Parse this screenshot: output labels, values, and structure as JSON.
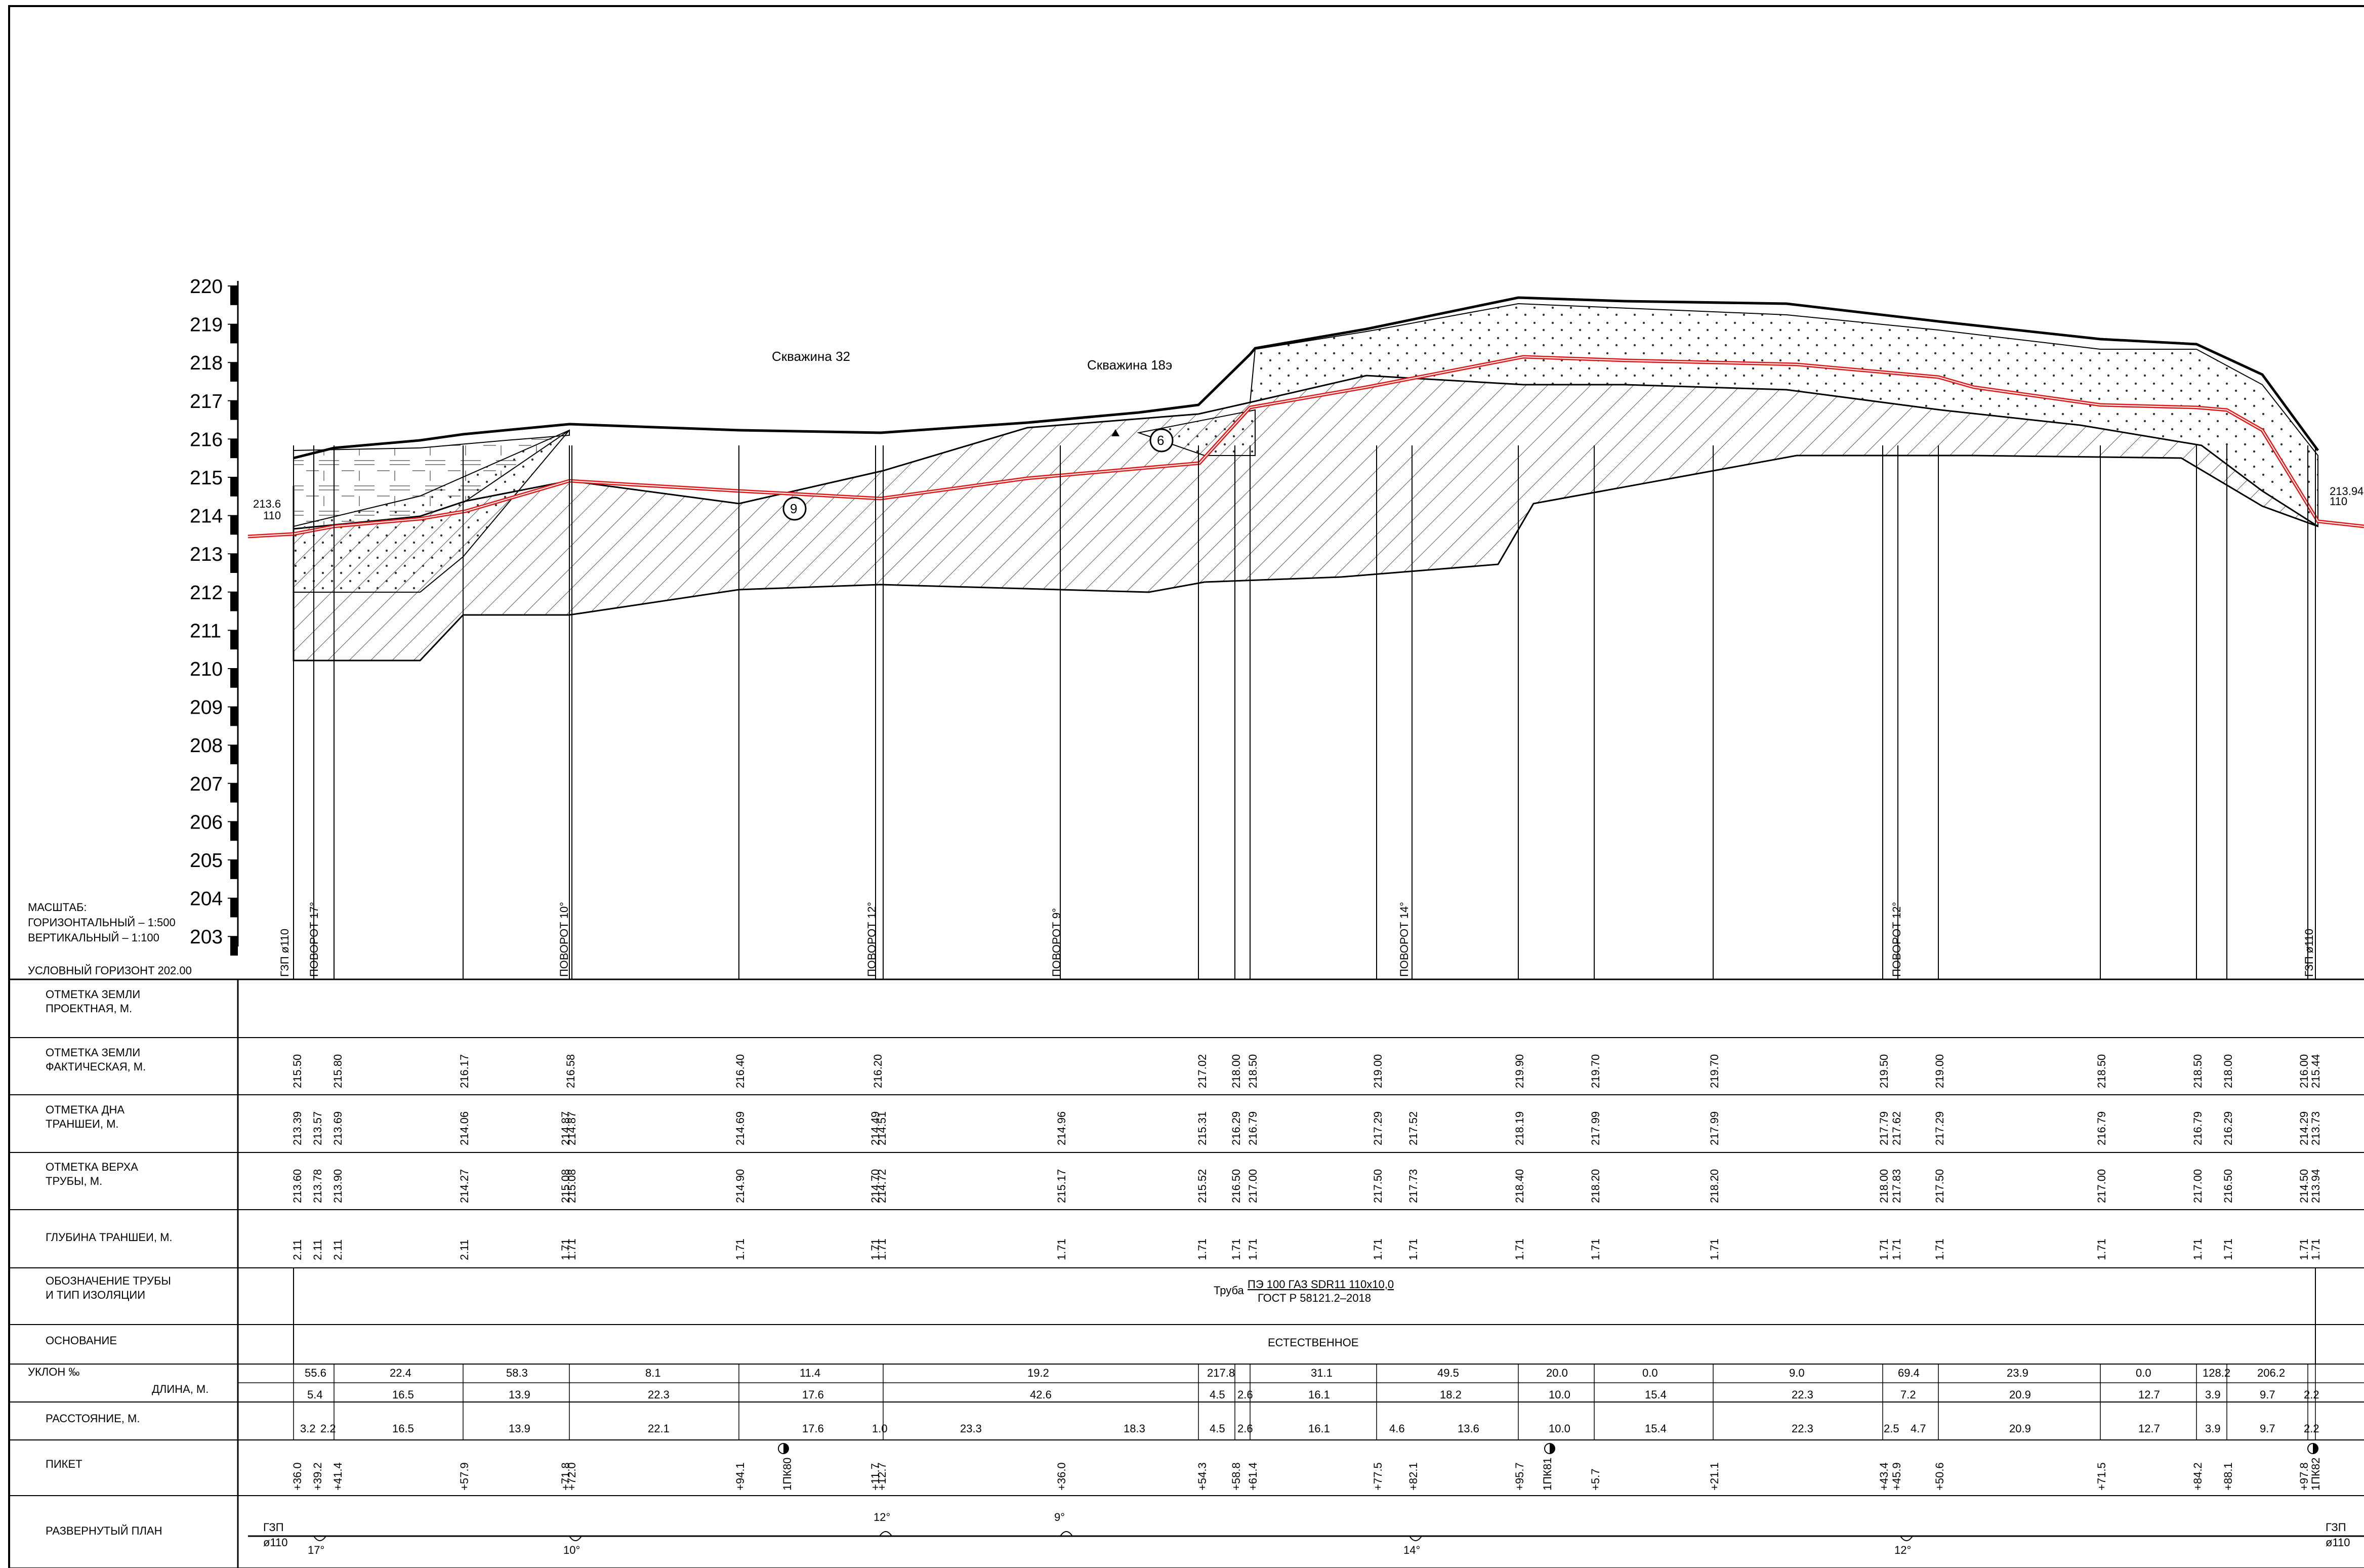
{
  "scale": {
    "title": "МАСШТАБ:",
    "horizontal": "ГОРИЗОНТАЛЬНЫЙ  – 1:500",
    "vertical": "ВЕРТИКАЛЬНЫЙ     – 1:100",
    "horizon": "УСЛОВНЫЙ ГОРИЗОНТ 202.00"
  },
  "axis_labels": [
    "220",
    "219",
    "218",
    "217",
    "216",
    "215",
    "214",
    "213",
    "212",
    "211",
    "210",
    "209",
    "208",
    "207",
    "206",
    "205",
    "204",
    "203"
  ],
  "boreholes": [
    "Скважина 32",
    "Скважина 18э"
  ],
  "circle_marks": [
    "9",
    "6"
  ],
  "start_label": {
    "level": "213.6",
    "diameter": "110"
  },
  "end_label": {
    "level": "213.94",
    "diameter": "110"
  },
  "vertical_labels": [
    "ГЗП ø110",
    "ПОВОРОТ 17°",
    "ПОВОРОТ 10°",
    "ПОВОРОТ 12°",
    "ПОВОРОТ 9°",
    "ПОВОРОТ 14°",
    "ПОВОРОТ 12°",
    "ГЗП ø110"
  ],
  "rows": [
    "ОТМЕТКА ЗЕМЛИ|ПРОЕКТНАЯ, М.",
    "ОТМЕТКА ЗЕМЛИ|ФАКТИЧЕСКАЯ, М.",
    "ОТМЕТКА ДНА|ТРАНШЕИ, М.",
    "ОТМЕТКА ВЕРХА|ТРУБЫ, М.",
    "ГЛУБИНА ТРАНШЕИ, М.",
    "ОБОЗНАЧЕНИЕ ТРУБЫ|И ТИП ИЗОЛЯЦИИ",
    "ОСНОВАНИЕ",
    "УКЛОН ‰",
    "ДЛИНА, М.",
    "РАССТОЯНИЕ, М.",
    "ПИКЕТ",
    "РАЗВЕРНУТЫЙ ПЛАН"
  ],
  "ground_actual": [
    "215.50",
    "215.80",
    "216.17",
    "216.58",
    "216.40",
    "216.20",
    "217.02",
    "218.00",
    "218.50",
    "219.00",
    "219.90",
    "219.70",
    "219.70",
    "219.50",
    "219.00",
    "218.50",
    "218.50",
    "218.00",
    "216.00",
    "215.44"
  ],
  "trench_bottom": [
    "213.39",
    "213.57",
    "213.69",
    "214.06",
    "214.87",
    "214.87",
    "214.69",
    "214.49",
    "214.51",
    "214.96",
    "215.31",
    "216.29",
    "216.79",
    "217.29",
    "217.52",
    "218.19",
    "217.99",
    "217.99",
    "217.79",
    "217.62",
    "217.29",
    "216.79",
    "216.79",
    "216.29",
    "214.29",
    "213.73"
  ],
  "pipe_top": [
    "213.60",
    "213.78",
    "213.90",
    "214.27",
    "215.08",
    "215.08",
    "214.90",
    "214.70",
    "214.72",
    "215.17",
    "215.52",
    "216.50",
    "217.00",
    "217.50",
    "217.73",
    "218.40",
    "218.20",
    "218.20",
    "218.00",
    "217.83",
    "217.50",
    "217.00",
    "217.00",
    "216.50",
    "214.50",
    "213.94"
  ],
  "trench_depth": [
    "2.11",
    "2.11",
    "2.11",
    "2.11",
    "1.71",
    "1.71",
    "1.71",
    "1.71",
    "1.71",
    "1.71",
    "1.71",
    "1.71",
    "1.71",
    "1.71",
    "1.71",
    "1.71",
    "1.71",
    "1.71",
    "1.71",
    "1.71",
    "1.71",
    "1.71",
    "1.71",
    "1.71",
    "1.71",
    "1.71"
  ],
  "pipe_desc": {
    "prefix": "Труба",
    "line1": "ПЭ 100 ГАЗ SDR11 110x10,0",
    "line2": "ГОСТ Р 58121.2–2018"
  },
  "base": "ЕСТЕСТВЕННОЕ",
  "slopes": [
    "55.6",
    "22.4",
    "58.3",
    "8.1",
    "11.4",
    "19.2",
    "217.8",
    "31.1",
    "49.5",
    "20.0",
    "0.0",
    "9.0",
    "69.4",
    "23.9",
    "0.0",
    "128.2",
    "206.2"
  ],
  "lengths": [
    "5.4",
    "16.5",
    "13.9",
    "22.3",
    "17.6",
    "42.6",
    "4.5",
    "2.6",
    "16.1",
    "18.2",
    "10.0",
    "15.4",
    "22.3",
    "7.2",
    "20.9",
    "12.7",
    "3.9",
    "9.7",
    "2.2"
  ],
  "distances": [
    "3.2",
    "2.2",
    "16.5",
    "13.9",
    "22.1",
    "17.6",
    "1.0",
    "23.3",
    "18.3",
    "4.5",
    "2.6",
    "16.1",
    "4.6",
    "13.6",
    "10.0",
    "15.4",
    "22.3",
    "2.5",
    "4.7",
    "20.9",
    "12.7",
    "3.9",
    "9.7",
    "2.2"
  ],
  "pickets": [
    "+36.0",
    "+39.2",
    "+41.4",
    "+57.9",
    "+71.8",
    "+72.0",
    "+94.1",
    "1ПК80",
    "+11.7",
    "+12.7",
    "+36.0",
    "+54.3",
    "+58.8",
    "+61.4",
    "+77.5",
    "+82.1",
    "+95.7",
    "1ПК81",
    "+5.7",
    "+21.1",
    "+43.4",
    "+45.9",
    "+50.6",
    "+71.5",
    "+84.2",
    "+88.1",
    "+97.8",
    "1ПК82"
  ],
  "plan_angles": [
    "17°",
    "10°",
    "12°",
    "9°",
    "14°",
    "12°"
  ],
  "plan_ends": {
    "start": "ГЗП|ø110",
    "end": "ГЗП|ø110"
  }
}
